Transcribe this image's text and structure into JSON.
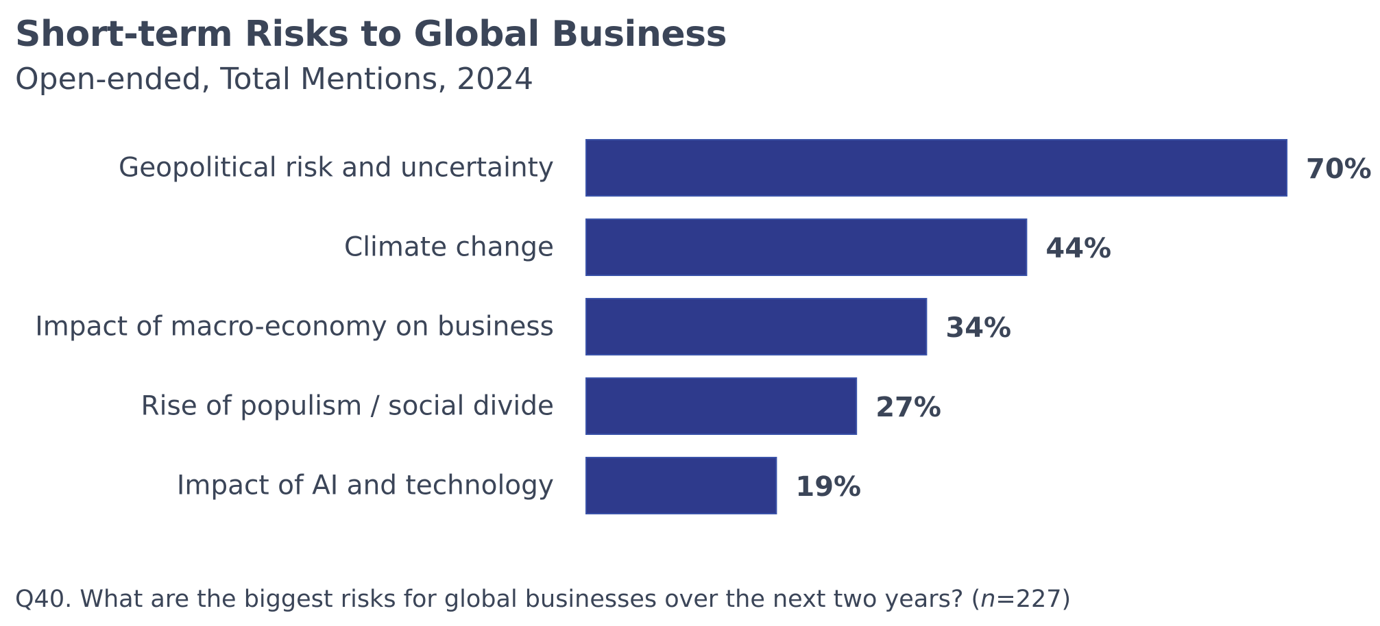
{
  "title": "Short-term Risks to Global Business",
  "subtitle": "Open-ended, Total Mentions, 2024",
  "footnote": {
    "text": "Q40. What are the biggest risks for global businesses over the next two years? (",
    "n_symbol": "n",
    "n_value": "=227)"
  },
  "colors": {
    "bar": "#2e3a8c",
    "text": "#3b4558"
  },
  "chart_data": {
    "type": "bar",
    "orientation": "horizontal",
    "categories": [
      "Geopolitical risk and uncertainty",
      "Climate change",
      "Impact of macro-economy on business",
      "Rise of populism / social divide",
      "Impact of AI and technology"
    ],
    "values": [
      70,
      44,
      34,
      27,
      19
    ],
    "value_labels": [
      "70%",
      "44%",
      "34%",
      "27%",
      "19%"
    ],
    "title": "Short-term Risks to Global Business",
    "subtitle": "Open-ended, Total Mentions, 2024",
    "xlim": [
      0,
      70
    ],
    "grid": false,
    "legend": false
  }
}
